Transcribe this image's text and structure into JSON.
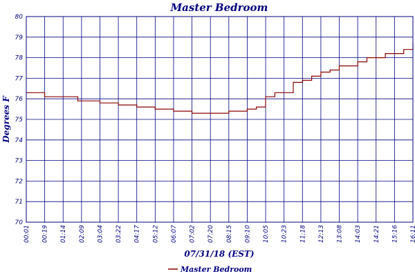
{
  "chart_data": {
    "type": "line",
    "title": "Master Bedroom",
    "xlabel": "07/31/18 (EST)",
    "ylabel": "Degrees F",
    "ylim": [
      70,
      80
    ],
    "yticks": [
      "70",
      "71",
      "72",
      "73",
      "74",
      "75",
      "76",
      "77",
      "78",
      "79",
      "80"
    ],
    "categories": [
      "00:01",
      "00:19",
      "01:14",
      "02:09",
      "03:04",
      "03:22",
      "04:17",
      "05:12",
      "06:07",
      "07:02",
      "07:20",
      "08:15",
      "09:10",
      "10:05",
      "10:23",
      "11:18",
      "12:13",
      "13:08",
      "14:03",
      "14:21",
      "15:16",
      "16:11"
    ],
    "grid": true,
    "legend": "bottom-center",
    "colors": {
      "series": "#8b0000",
      "grid": "#000080",
      "text": "#000080"
    },
    "series": [
      {
        "name": "Master Bedroom",
        "x": [
          0,
          0.8,
          1.0,
          2.0,
          2.8,
          3.0,
          4.0,
          5.0,
          6.0,
          6.5,
          7.0,
          7.5,
          8.0,
          9.0,
          10.0,
          11.0,
          12.0,
          12.5,
          13.0,
          13.3,
          13.5,
          14.0,
          14.5,
          15.0,
          15.5,
          16.0,
          16.5,
          17.0,
          17.5,
          18.0,
          18.5,
          19.0,
          19.5,
          20.0,
          20.5,
          21.0
        ],
        "y": [
          76.3,
          76.3,
          76.1,
          76.1,
          75.9,
          75.9,
          75.8,
          75.7,
          75.6,
          75.6,
          75.5,
          75.5,
          75.4,
          75.3,
          75.3,
          75.4,
          75.5,
          75.6,
          76.1,
          76.1,
          76.3,
          76.3,
          76.8,
          76.9,
          77.1,
          77.3,
          77.4,
          77.6,
          77.6,
          77.8,
          78.0,
          78.0,
          78.2,
          78.2,
          78.4,
          78.7
        ]
      }
    ]
  }
}
